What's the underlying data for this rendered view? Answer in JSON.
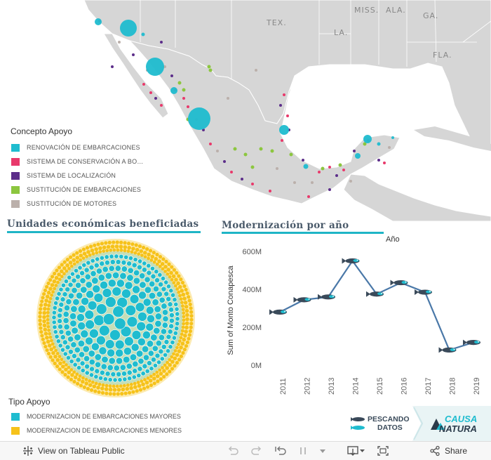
{
  "map": {
    "labels": [
      "TEX.",
      "MISS.",
      "ALA.",
      "GA.",
      "LA.",
      "FLA."
    ],
    "legend_title": "Concepto Apoyo",
    "legend_items": [
      {
        "label": "RENOVACIÓN DE EMBARCACIONES",
        "color": "#1fbccf"
      },
      {
        "label": "SISTEMA DE CONSERVACIÓN A BO…",
        "color": "#e8396b"
      },
      {
        "label": "SISTEMA DE LOCALIZACIÓN",
        "color": "#5c2d8a"
      },
      {
        "label": "SUSTITUCIÓN DE EMBARCACIONES",
        "color": "#8cc63f"
      },
      {
        "label": "SUSTITUCIÓN DE MOTORES",
        "color": "#bbb0ab"
      }
    ]
  },
  "units": {
    "title": "Unidades económicas beneficiadas",
    "legend_title": "Tipo Apoyo",
    "legend_items": [
      {
        "label": "MODERNIZACION DE EMBARCACIONES MAYORES",
        "color": "#1fbccf"
      },
      {
        "label": "MODERNIZACION DE EMBARCACIONES MENORES",
        "color": "#f6c21a"
      }
    ]
  },
  "chart_data": {
    "type": "line",
    "title": "Modernización por año",
    "xlabel": "Año",
    "ylabel": "Sum of Monto Conapesca",
    "categories": [
      "2011",
      "2012",
      "2013",
      "2014",
      "2015",
      "2016",
      "2017",
      "2018",
      "2019"
    ],
    "values": [
      280,
      345,
      360,
      550,
      375,
      435,
      385,
      80,
      120
    ],
    "ylim": [
      0,
      600
    ],
    "yticks": [
      0,
      200,
      400,
      600
    ],
    "ytick_labels": [
      "0M",
      "200M",
      "400M",
      "600M"
    ],
    "line_color": "#4a78a8",
    "marker": "fish"
  },
  "logos": {
    "pescando_line1": "PESCANDO",
    "pescando_line2": "DATOS",
    "causa_line1": "CAUSA",
    "causa_line2": "NATURA"
  },
  "toolbar": {
    "view_label": "View on Tableau Public",
    "share_label": "Share"
  }
}
